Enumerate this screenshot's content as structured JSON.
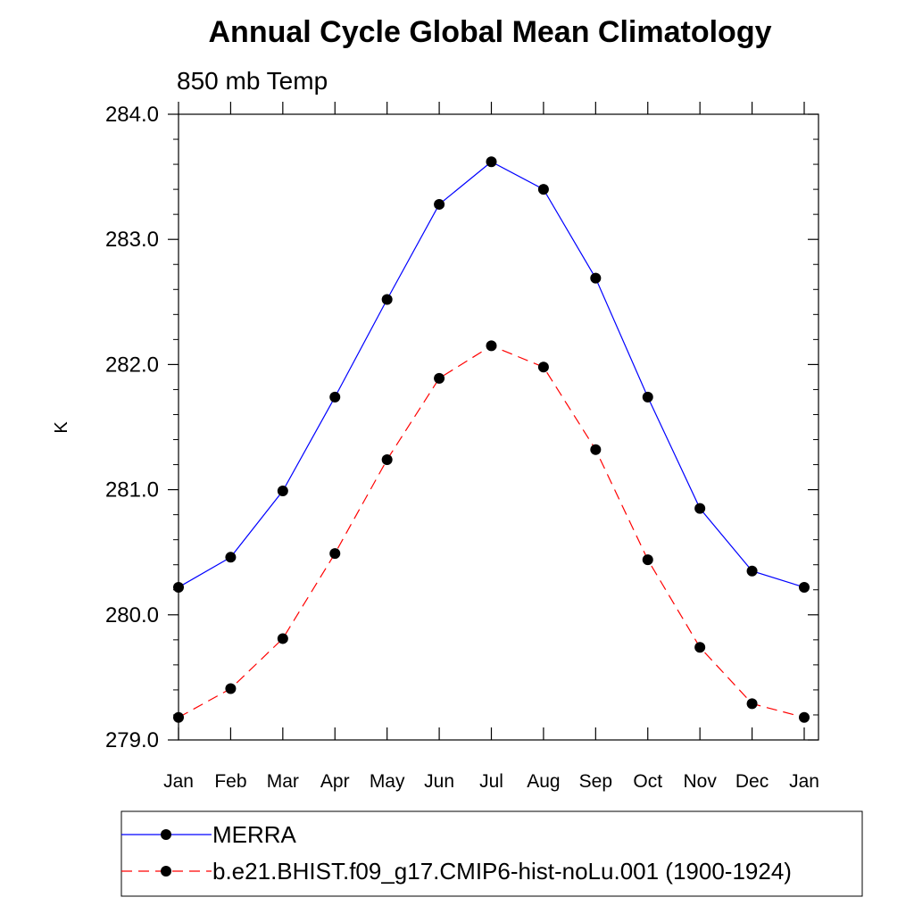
{
  "chart_data": {
    "type": "line",
    "title": "Annual Cycle Global Mean Climatology",
    "subtitle": "850 mb Temp",
    "xlabel": "",
    "ylabel": "K",
    "categories": [
      "Jan",
      "Feb",
      "Mar",
      "Apr",
      "May",
      "Jun",
      "Jul",
      "Aug",
      "Sep",
      "Oct",
      "Nov",
      "Dec",
      "Jan"
    ],
    "ylim": [
      279.0,
      284.0
    ],
    "yticks": [
      "279.0",
      "280.0",
      "281.0",
      "282.0",
      "283.0",
      "284.0"
    ],
    "y_minor_step": 0.2,
    "grid": false,
    "legend_position": "bottom",
    "series": [
      {
        "name": "MERRA",
        "values": [
          280.22,
          280.46,
          280.99,
          281.74,
          282.52,
          283.28,
          283.62,
          283.4,
          282.69,
          281.74,
          280.85,
          280.35,
          280.22
        ],
        "color": "#0000ff",
        "dash": "solid",
        "marker": "filled-circle"
      },
      {
        "name": "b.e21.BHIST.f09_g17.CMIP6-hist-noLu.001 (1900-1924)",
        "values": [
          279.18,
          279.41,
          279.81,
          280.49,
          281.24,
          281.89,
          282.15,
          281.98,
          281.32,
          280.44,
          279.74,
          279.29,
          279.18
        ],
        "color": "#ff0000",
        "dash": "dashed",
        "marker": "filled-circle"
      }
    ]
  }
}
